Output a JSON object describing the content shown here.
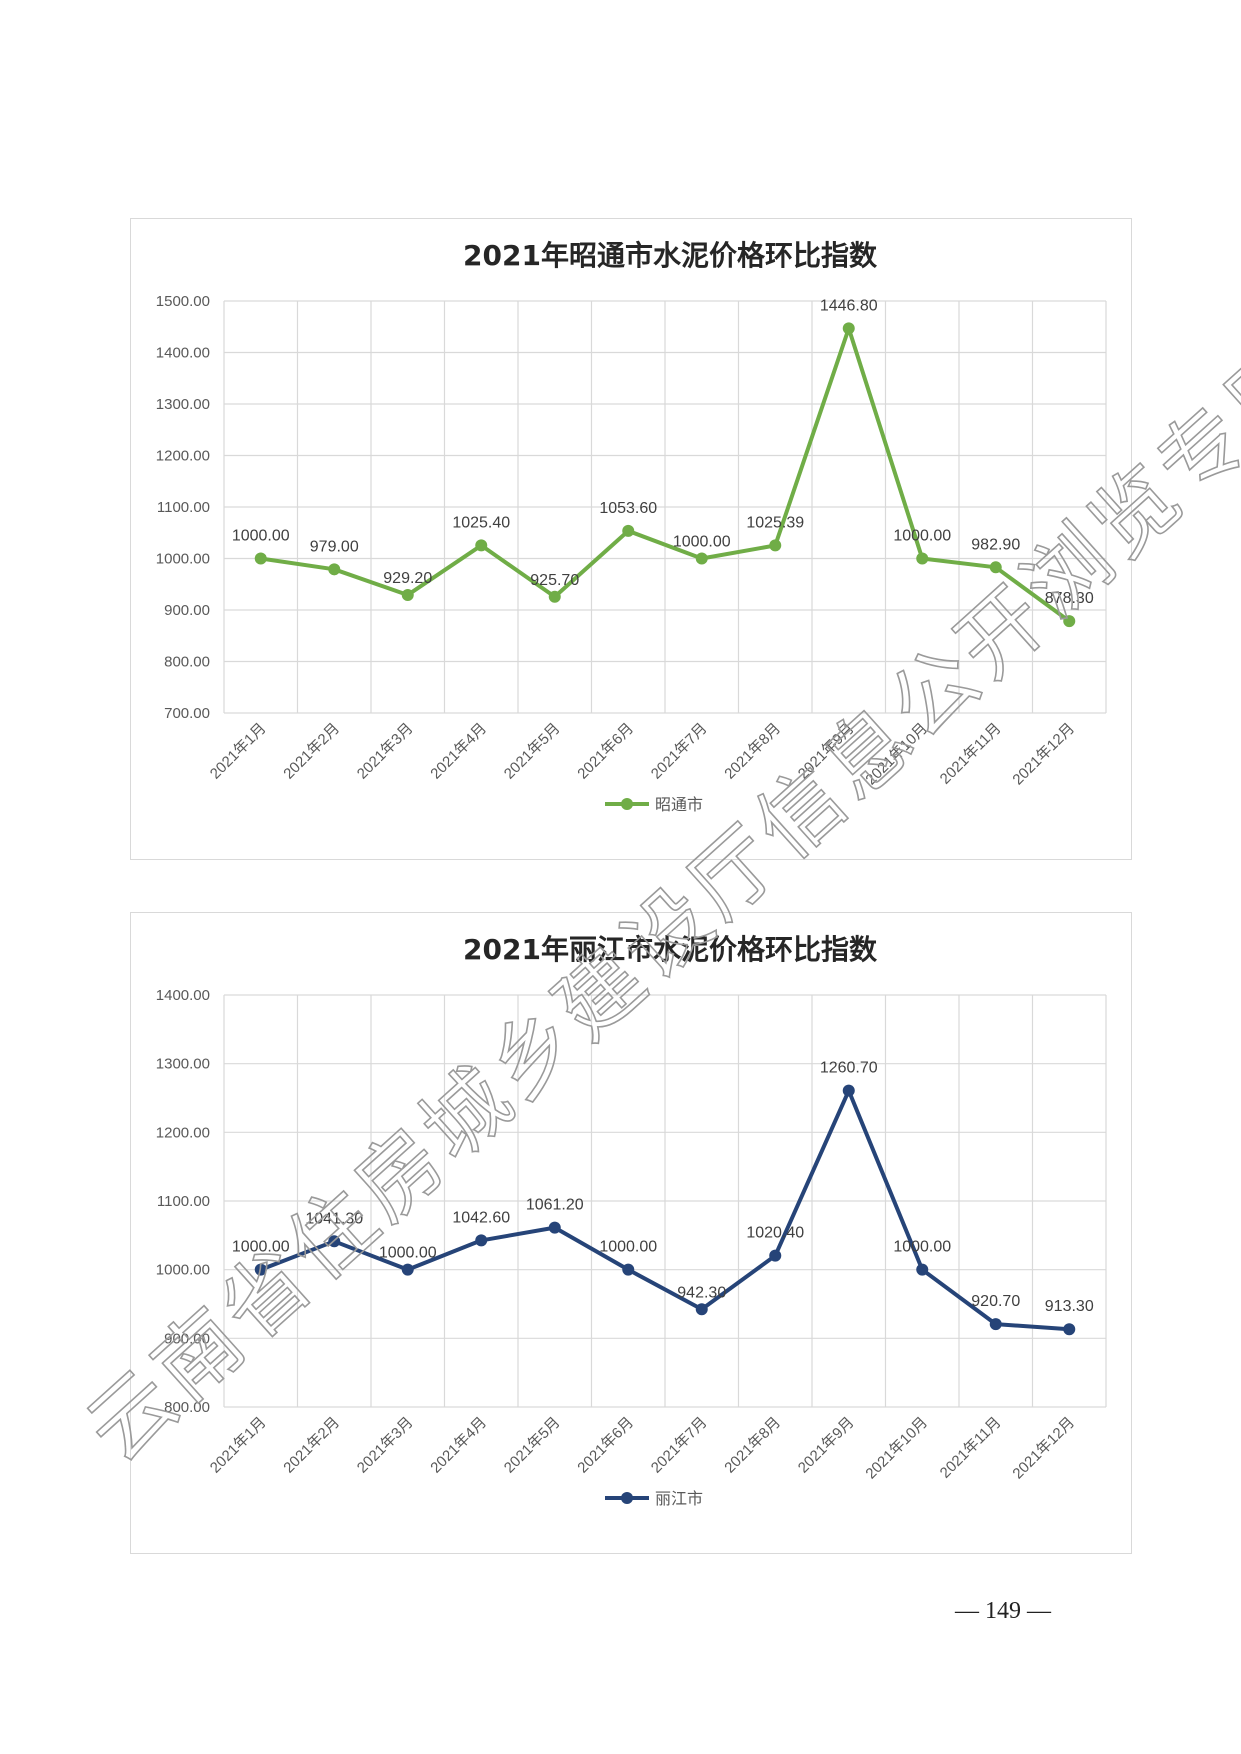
{
  "charts": [
    {
      "title": "2021年昭通市水泥价格环比指数",
      "legend": "昭通市",
      "color": "#70ad47",
      "yticks": [
        "700.00",
        "800.00",
        "900.00",
        "1000.00",
        "1100.00",
        "1200.00",
        "1300.00",
        "1400.00",
        "1500.00"
      ]
    },
    {
      "title": "2021年丽江市水泥价格环比指数",
      "legend": "丽江市",
      "color": "#264478",
      "yticks": [
        "800.00",
        "900.00",
        "1000.00",
        "1100.00",
        "1200.00",
        "1300.00",
        "1400.00"
      ]
    }
  ],
  "chart_data": [
    {
      "type": "line",
      "title": "2021年昭通市水泥价格环比指数",
      "categories": [
        "2021年1月",
        "2021年2月",
        "2021年3月",
        "2021年4月",
        "2021年5月",
        "2021年6月",
        "2021年7月",
        "2021年8月",
        "2021年9月",
        "2021年10月",
        "2021年11月",
        "2021年12月"
      ],
      "series": [
        {
          "name": "昭通市",
          "values": [
            1000.0,
            979.0,
            929.2,
            1025.4,
            925.7,
            1053.6,
            1000.0,
            1025.39,
            1446.8,
            1000.0,
            982.9,
            878.3
          ],
          "labels": [
            "1000.00",
            "979.00",
            "929.20",
            "1025.40",
            "925.70",
            "1053.60",
            "1000.00",
            "1025.39",
            "1446.80",
            "1000.00",
            "982.90",
            "878.30"
          ]
        }
      ],
      "ylim": [
        700,
        1500
      ],
      "grid": true,
      "legend_position": "bottom"
    },
    {
      "type": "line",
      "title": "2021年丽江市水泥价格环比指数",
      "categories": [
        "2021年1月",
        "2021年2月",
        "2021年3月",
        "2021年4月",
        "2021年5月",
        "2021年6月",
        "2021年7月",
        "2021年8月",
        "2021年9月",
        "2021年10月",
        "2021年11月",
        "2021年12月"
      ],
      "series": [
        {
          "name": "丽江市",
          "values": [
            1000.0,
            1041.3,
            1000.0,
            1042.6,
            1061.2,
            1000.0,
            942.3,
            1020.4,
            1260.7,
            1000.0,
            920.7,
            913.3
          ],
          "labels": [
            "1000.00",
            "1041.30",
            "1000.00",
            "1042.60",
            "1061.20",
            "1000.00",
            "942.30",
            "1020.40",
            "1260.70",
            "1000.00",
            "920.70",
            "913.30"
          ]
        }
      ],
      "ylim": [
        800,
        1400
      ],
      "grid": true,
      "legend_position": "bottom"
    }
  ],
  "page_number": "— 149 —",
  "watermark": "云南省住房城乡建设厅信息公开浏览专用"
}
